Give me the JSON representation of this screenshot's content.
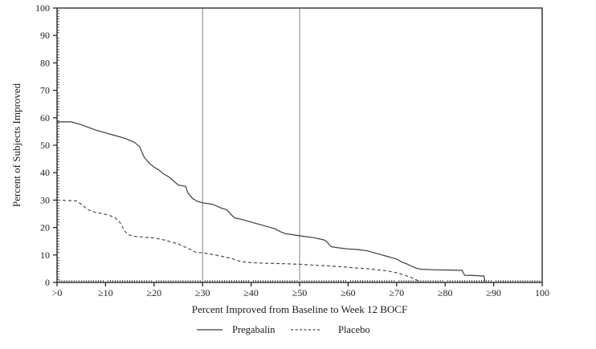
{
  "page": {
    "background": "#ffffff"
  },
  "chart_data": {
    "type": "line",
    "title": "",
    "xlabel": "Percent Improved from Baseline to Week 12 BOCF",
    "ylabel": "Percent of Subjects Improved",
    "xlim": [
      0,
      100
    ],
    "ylim": [
      0,
      100
    ],
    "grid": false,
    "x_ticks": {
      "values": [
        0,
        10,
        20,
        30,
        40,
        50,
        60,
        70,
        80,
        90,
        100
      ],
      "labels": [
        ">0",
        "≥10",
        "≥20",
        "≥30",
        "≥40",
        "≥50",
        "≥60",
        "≥70",
        "≥80",
        "≥90",
        "100"
      ]
    },
    "y_ticks": {
      "values": [
        0,
        10,
        20,
        30,
        40,
        50,
        60,
        70,
        80,
        90,
        100
      ],
      "labels": [
        "0",
        "10",
        "20",
        "30",
        "40",
        "50",
        "60",
        "70",
        "80",
        "90",
        "100"
      ]
    },
    "reference_lines_x": [
      30,
      50
    ],
    "legend_position": "bottom-center",
    "legend": [
      {
        "name": "Pregabalin",
        "style": "solid"
      },
      {
        "name": "Placebo",
        "style": "dashed"
      }
    ],
    "colors": {
      "frame": "#1a1a1a",
      "tick": "#1a1a1a",
      "text": "#1c1c1c",
      "reference_line": "#8c8c8c",
      "pregabalin_line": "#3c3c3c",
      "placebo_line": "#4a4a4a"
    },
    "series": [
      {
        "name": "Pregabalin",
        "style": "solid",
        "color": "#3c3c3c",
        "points": [
          [
            0,
            58.5
          ],
          [
            3,
            58.5
          ],
          [
            5,
            57.5
          ],
          [
            8,
            55.5
          ],
          [
            10,
            54.5
          ],
          [
            12,
            53.5
          ],
          [
            14,
            52.5
          ],
          [
            16,
            51
          ],
          [
            17,
            49.5
          ],
          [
            18,
            45.5
          ],
          [
            19,
            43.5
          ],
          [
            20,
            42
          ],
          [
            21,
            41
          ],
          [
            22,
            39.5
          ],
          [
            23,
            38.5
          ],
          [
            24,
            37
          ],
          [
            25,
            35.5
          ],
          [
            26.5,
            35
          ],
          [
            27,
            32.5
          ],
          [
            28,
            30.5
          ],
          [
            29,
            29.5
          ],
          [
            30,
            29
          ],
          [
            32,
            28.5
          ],
          [
            34,
            27
          ],
          [
            35,
            26.5
          ],
          [
            36,
            24.5
          ],
          [
            36.6,
            23.5
          ],
          [
            38,
            23
          ],
          [
            40,
            22
          ],
          [
            42,
            21
          ],
          [
            44,
            20
          ],
          [
            45,
            19.5
          ],
          [
            46,
            18.5
          ],
          [
            47,
            17.8
          ],
          [
            50,
            17
          ],
          [
            53,
            16.3
          ],
          [
            55,
            15.5
          ],
          [
            55.5,
            15
          ],
          [
            56.5,
            13
          ],
          [
            58,
            12.6
          ],
          [
            60,
            12.2
          ],
          [
            62,
            12
          ],
          [
            64,
            11.5
          ],
          [
            65,
            11
          ],
          [
            67,
            10
          ],
          [
            68,
            9.5
          ],
          [
            69,
            9
          ],
          [
            70,
            8.5
          ],
          [
            71,
            7.5
          ],
          [
            72,
            6.8
          ],
          [
            73,
            6
          ],
          [
            74,
            5.2
          ],
          [
            75,
            4.8
          ],
          [
            78,
            4.6
          ],
          [
            81,
            4.5
          ],
          [
            83.5,
            4.4
          ],
          [
            84,
            2.6
          ],
          [
            86,
            2.5
          ],
          [
            88,
            2.3
          ],
          [
            88.2,
            0.4
          ]
        ]
      },
      {
        "name": "Placebo",
        "style": "dashed",
        "color": "#4a4a4a",
        "points": [
          [
            0,
            30
          ],
          [
            4,
            29.7
          ],
          [
            5,
            28.5
          ],
          [
            6,
            27
          ],
          [
            7,
            26
          ],
          [
            8,
            25.5
          ],
          [
            9,
            25.2
          ],
          [
            10,
            24.8
          ],
          [
            11,
            24.3
          ],
          [
            12,
            23.5
          ],
          [
            13,
            21.8
          ],
          [
            14,
            18.5
          ],
          [
            15,
            17.2
          ],
          [
            16,
            16.8
          ],
          [
            18,
            16.5
          ],
          [
            20,
            16.2
          ],
          [
            22,
            15.5
          ],
          [
            24,
            14.5
          ],
          [
            25,
            14
          ],
          [
            26,
            13.2
          ],
          [
            27,
            12.4
          ],
          [
            28,
            11.6
          ],
          [
            28.6,
            11
          ],
          [
            30,
            10.8
          ],
          [
            32,
            10.2
          ],
          [
            34,
            9.5
          ],
          [
            36,
            8.7
          ],
          [
            37,
            8.1
          ],
          [
            38,
            7.6
          ],
          [
            40,
            7.2
          ],
          [
            43,
            7
          ],
          [
            47,
            6.8
          ],
          [
            50,
            6.6
          ],
          [
            53,
            6.3
          ],
          [
            55,
            6.1
          ],
          [
            58,
            5.8
          ],
          [
            60,
            5.5
          ],
          [
            62,
            5.2
          ],
          [
            64,
            5
          ],
          [
            66,
            4.6
          ],
          [
            68,
            4.2
          ],
          [
            69,
            3.9
          ],
          [
            70,
            3.5
          ],
          [
            71,
            3
          ],
          [
            72,
            2.4
          ],
          [
            73,
            1.8
          ],
          [
            74,
            1
          ],
          [
            74.6,
            0.4
          ]
        ]
      }
    ]
  }
}
